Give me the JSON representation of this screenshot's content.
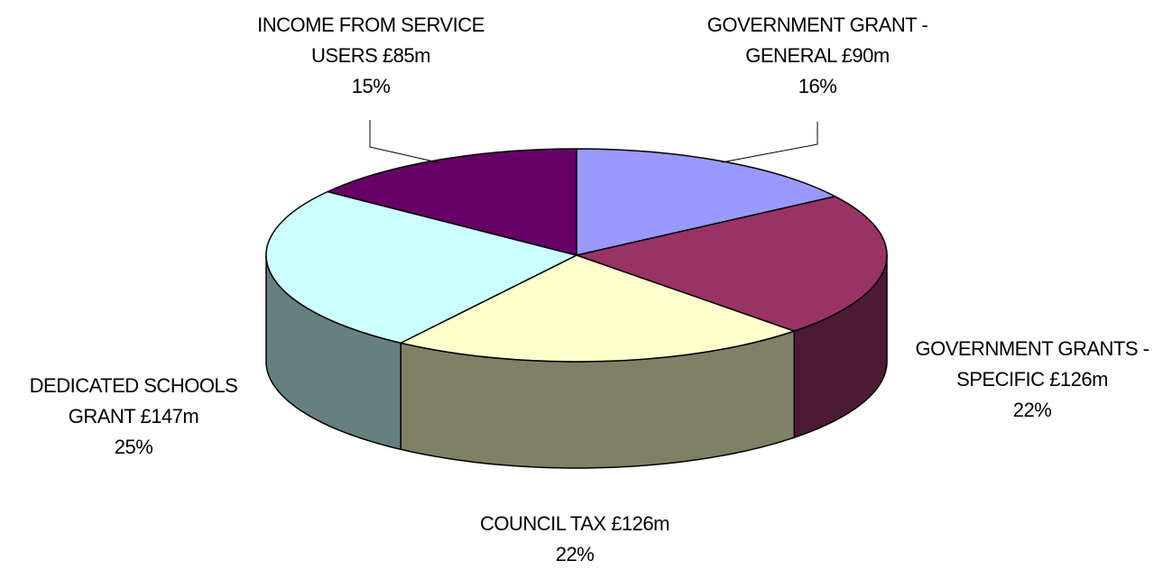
{
  "chart_data": {
    "type": "pie",
    "title": "",
    "start": "12 o'clock",
    "direction": "clockwise",
    "slices": [
      {
        "label": "GOVERNMENT GRANT - GENERAL £90m",
        "label_lines": [
          "GOVERNMENT GRANT -",
          "GENERAL £90m"
        ],
        "value": 90,
        "percent_label": "16%",
        "color": "#9999FF",
        "side_color": "#5C5C99",
        "edge_color": "#000000"
      },
      {
        "label": "GOVERNMENT GRANTS - SPECIFIC £126m",
        "label_lines": [
          "GOVERNMENT GRANTS -",
          "SPECIFIC £126m"
        ],
        "value": 126,
        "percent_label": "22%",
        "color": "#993366",
        "side_color": "#4D1A33",
        "edge_color": "#000000"
      },
      {
        "label": "COUNCIL TAX £126m",
        "label_lines": [
          "COUNCIL TAX £126m"
        ],
        "value": 126,
        "percent_label": "22%",
        "color": "#FFFFCC",
        "side_color": "#808066",
        "edge_color": "#000000"
      },
      {
        "label": "DEDICATED SCHOOLS GRANT £147m",
        "label_lines": [
          "DEDICATED SCHOOLS",
          "GRANT £147m"
        ],
        "value": 147,
        "percent_label": "25%",
        "color": "#CCFFFF",
        "side_color": "#668080",
        "edge_color": "#000000"
      },
      {
        "label": "INCOME FROM SERVICE USERS £85m",
        "label_lines": [
          "INCOME FROM SERVICE",
          "USERS £85m"
        ],
        "value": 85,
        "percent_label": "15%",
        "color": "#660066",
        "side_color": "#330033",
        "edge_color": "#000000"
      }
    ]
  }
}
